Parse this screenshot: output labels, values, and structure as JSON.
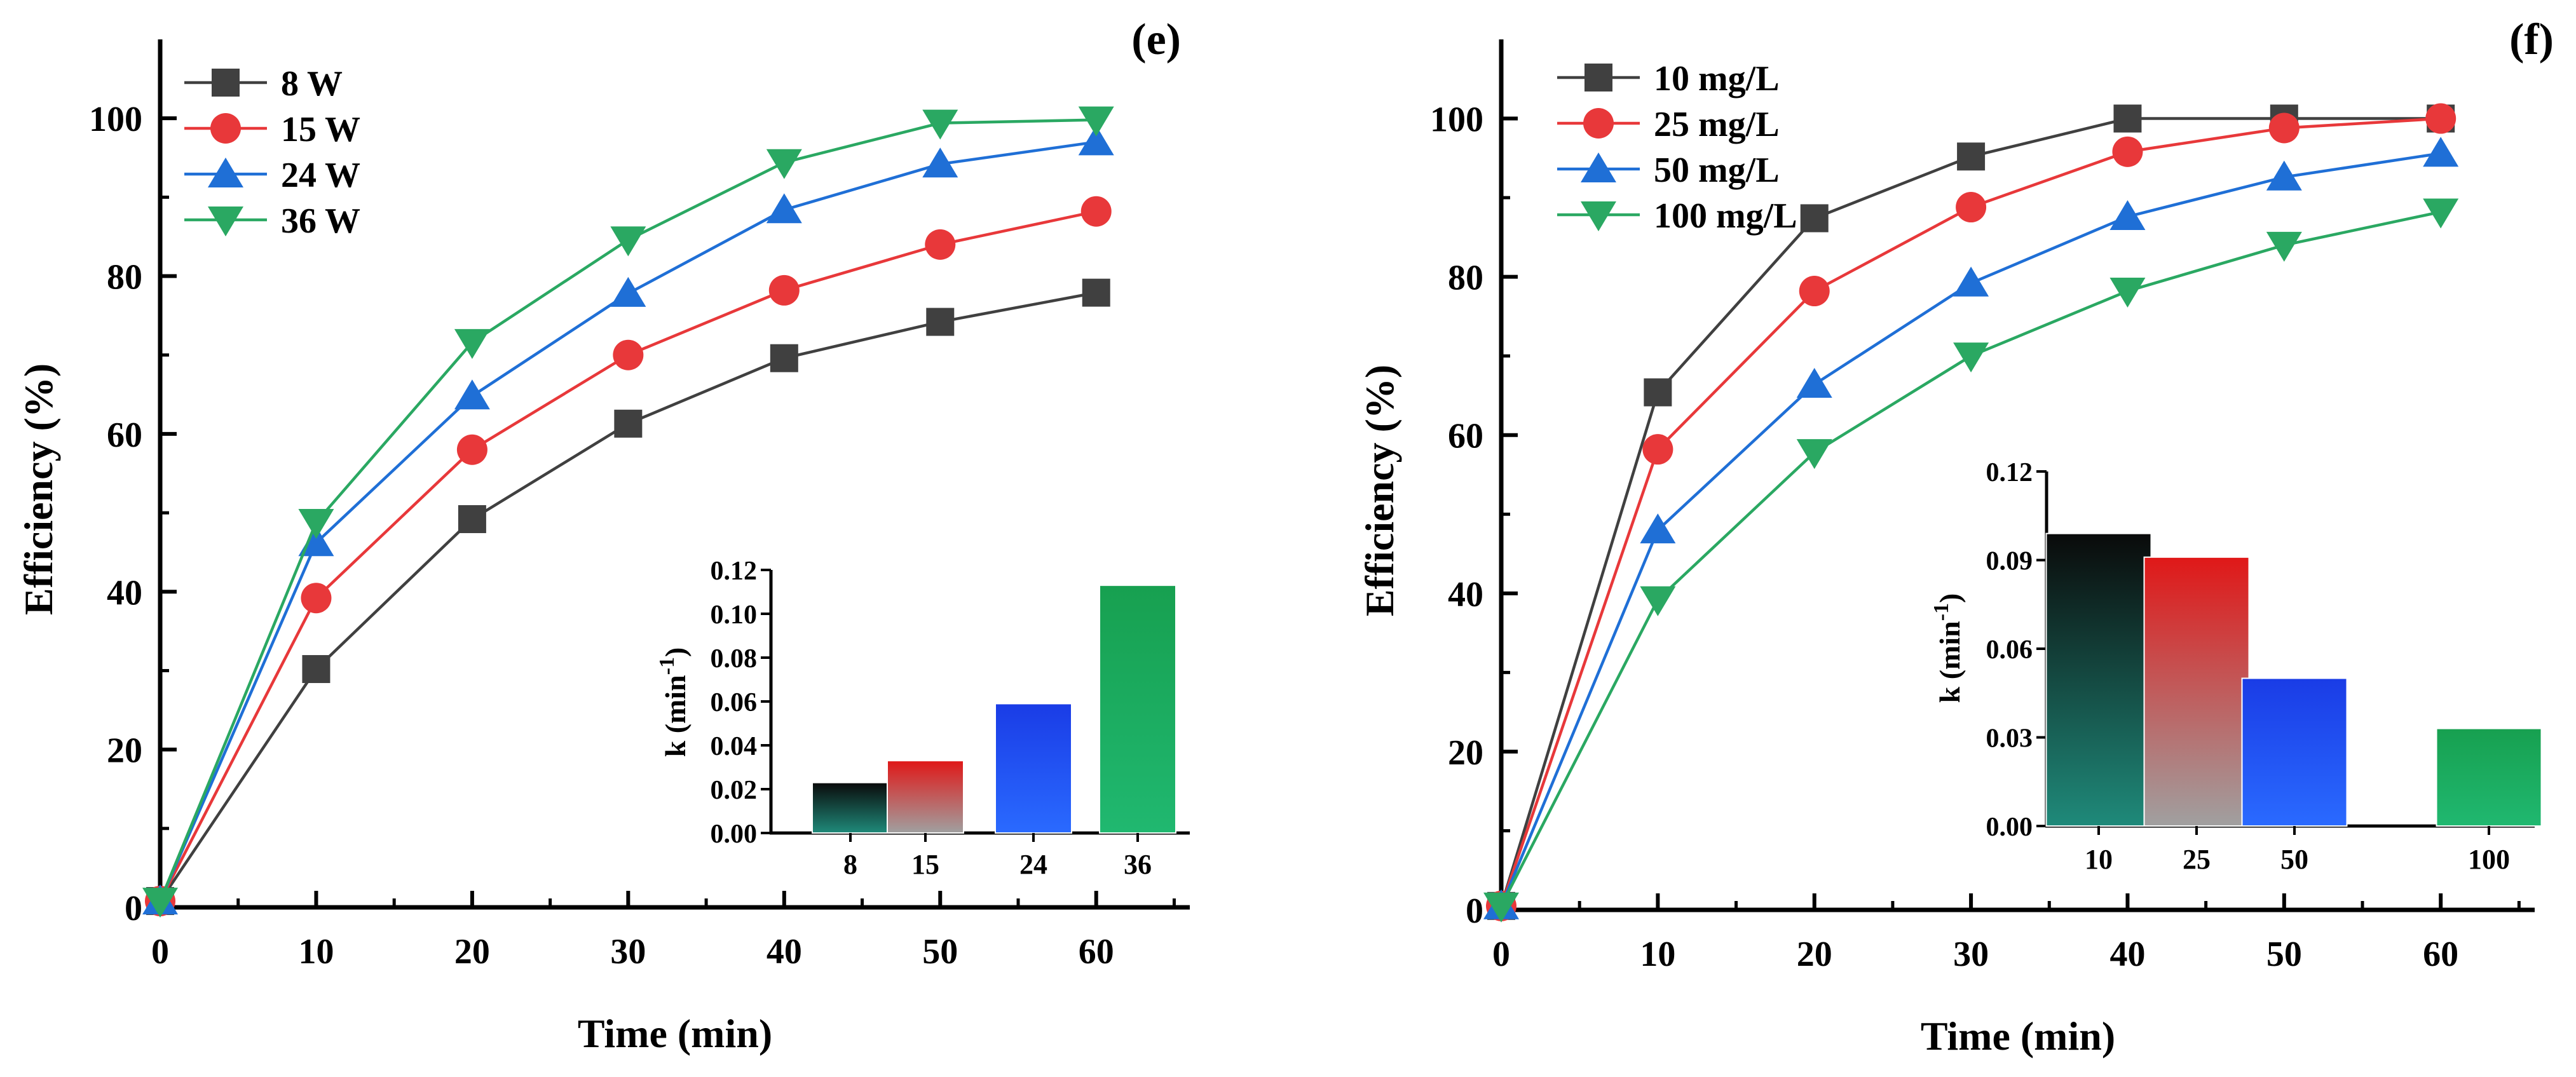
{
  "panels": [
    {
      "label": "(e)",
      "chart_data": {
        "type": "line",
        "xlabel": "Time (min)",
        "ylabel": "Efficiency (%)",
        "xlim": [
          0,
          66
        ],
        "ylim": [
          0,
          110
        ],
        "xticks": [
          0,
          10,
          20,
          30,
          40,
          50,
          60
        ],
        "yticks": [
          0,
          20,
          40,
          60,
          80,
          100
        ],
        "x": [
          0,
          10,
          20,
          30,
          40,
          50,
          60
        ],
        "legend_position": "top-left",
        "series": [
          {
            "name": "8 W",
            "color": "#404040",
            "marker": "square",
            "values": [
              0.8,
              30.2,
              49.2,
              61.3,
              69.6,
              74.2,
              77.9
            ]
          },
          {
            "name": "15 W",
            "color": "#e8383a",
            "marker": "circle",
            "values": [
              0.8,
              39.2,
              58.0,
              70.0,
              78.2,
              84.0,
              88.2
            ]
          },
          {
            "name": "24 W",
            "color": "#1f6fd6",
            "marker": "triangle-up",
            "values": [
              0.8,
              46.2,
              64.8,
              77.8,
              88.4,
              94.2,
              97.0
            ]
          },
          {
            "name": "36 W",
            "color": "#2aa862",
            "marker": "triangle-down",
            "values": [
              0.8,
              48.8,
              71.6,
              84.6,
              94.4,
              99.4,
              99.8
            ]
          }
        ]
      },
      "inset": {
        "chart_data": {
          "type": "bar",
          "ylabel_main": "k (min",
          "ylabel_sup": "-1",
          "ylabel_close": ")",
          "ylim": [
            0,
            0.12
          ],
          "yticks": [
            "0.00",
            "0.02",
            "0.04",
            "0.06",
            "0.08",
            "0.10",
            "0.12"
          ],
          "categories": [
            "8",
            "15",
            "24",
            "36"
          ],
          "values": [
            0.023,
            0.033,
            0.059,
            0.113
          ],
          "bar_colors": [
            "#0a0a0a",
            "#e01818",
            "#1a3ce6",
            "#17a050"
          ]
        }
      }
    },
    {
      "label": "(f)",
      "chart_data": {
        "type": "line",
        "xlabel": "Time (min)",
        "ylabel": "Efficiency (%)",
        "xlim": [
          0,
          66
        ],
        "ylim": [
          0,
          110
        ],
        "xticks": [
          0,
          10,
          20,
          30,
          40,
          50,
          60
        ],
        "yticks": [
          0,
          20,
          40,
          60,
          80,
          100
        ],
        "x": [
          0,
          10,
          20,
          30,
          40,
          50,
          60
        ],
        "legend_position": "top-left",
        "series": [
          {
            "name": "10 mg/L",
            "color": "#404040",
            "marker": "square",
            "values": [
              0.5,
              65.4,
              87.4,
              95.2,
              100.0,
              100.0,
              100.0
            ]
          },
          {
            "name": "25 mg/L",
            "color": "#e8383a",
            "marker": "circle",
            "values": [
              0.5,
              58.2,
              78.2,
              88.8,
              95.8,
              98.8,
              100.0
            ]
          },
          {
            "name": "50 mg/L",
            "color": "#1f6fd6",
            "marker": "triangle-up",
            "values": [
              0.5,
              48.0,
              66.4,
              79.2,
              87.6,
              92.6,
              95.6
            ]
          },
          {
            "name": "100  mg/L",
            "color": "#2aa862",
            "marker": "triangle-down",
            "values": [
              0.5,
              39.2,
              57.8,
              70.0,
              78.2,
              84.0,
              88.2
            ]
          }
        ]
      },
      "inset": {
        "chart_data": {
          "type": "bar",
          "ylabel_main": "k (min",
          "ylabel_sup": "-1",
          "ylabel_close": ")",
          "ylim": [
            0,
            0.12
          ],
          "yticks": [
            "0.00",
            "0.03",
            "0.06",
            "0.09",
            "0.12"
          ],
          "categories": [
            "10",
            "25",
            "50",
            "100"
          ],
          "values": [
            0.099,
            0.091,
            0.05,
            0.033
          ],
          "bar_colors": [
            "#0a0a0a",
            "#e01818",
            "#1a3ce6",
            "#17a050"
          ]
        }
      }
    }
  ]
}
